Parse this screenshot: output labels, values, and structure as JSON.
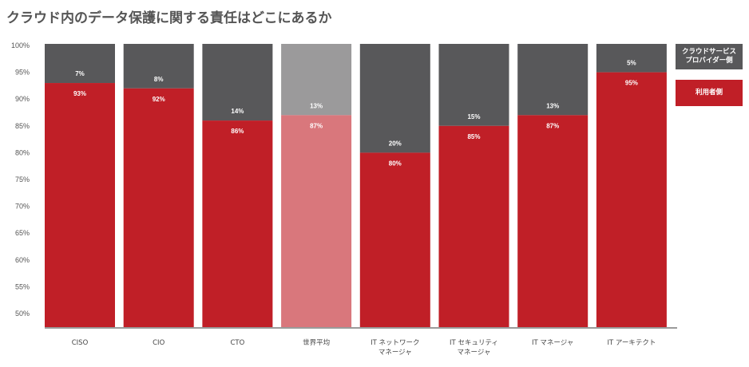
{
  "title": "クラウド内のデータ保護に関する責任はどこにあるか",
  "colors": {
    "provider": "#58585a",
    "user": "#c01f27",
    "provider_highlight": "#9b9a9b",
    "user_highlight": "#d9777c",
    "axis": "#9a9a9a"
  },
  "legend": [
    {
      "key": "provider",
      "label_lines": [
        "クラウドサービス",
        "プロバイダー側"
      ]
    },
    {
      "key": "user",
      "label_lines": [
        "利用者側"
      ]
    }
  ],
  "chart_data": {
    "type": "bar",
    "stacked": true,
    "title": "クラウド内のデータ保護に関する責任はどこにあるか",
    "xlabel": "",
    "ylabel": "",
    "ylim": [
      50,
      100
    ],
    "yticks": [
      "50%",
      "55%",
      "60%",
      "65%",
      "70%",
      "75%",
      "80%",
      "85%",
      "90%",
      "95%",
      "100%"
    ],
    "ytick_values": [
      50,
      55,
      60,
      65,
      70,
      75,
      80,
      85,
      90,
      95,
      100
    ],
    "grid": false,
    "legend_position": "right",
    "categories": [
      [
        "CISO"
      ],
      [
        "CIO"
      ],
      [
        "CTO"
      ],
      [
        "世界平均"
      ],
      [
        "IT ネットワーク",
        "マネージャ"
      ],
      [
        "IT セキュリティ",
        "マネージャ"
      ],
      [
        "IT マネージャ"
      ],
      [
        "IT アーキテクト"
      ]
    ],
    "highlight_index": 3,
    "series": [
      {
        "name": "利用者側",
        "key": "user",
        "values": [
          93,
          92,
          86,
          87,
          80,
          85,
          87,
          95
        ],
        "labels": [
          "93%",
          "92%",
          "86%",
          "87%",
          "80%",
          "85%",
          "87%",
          "95%"
        ]
      },
      {
        "name": "クラウドサービスプロバイダー側",
        "key": "provider",
        "values": [
          7,
          8,
          14,
          13,
          20,
          15,
          13,
          5
        ],
        "labels": [
          "7%",
          "8%",
          "14%",
          "13%",
          "20%",
          "15%",
          "13%",
          "5%"
        ]
      }
    ]
  }
}
